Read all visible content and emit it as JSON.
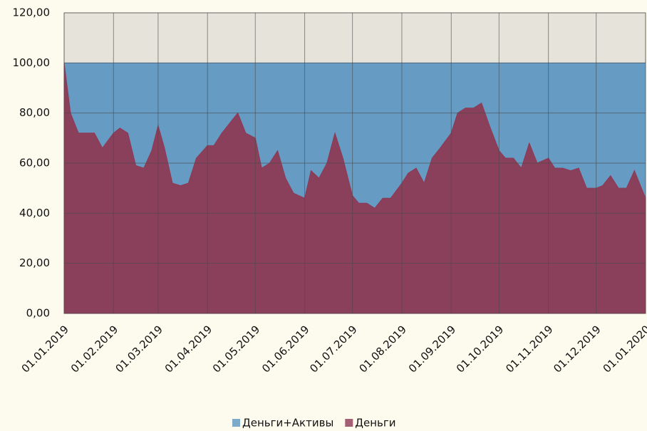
{
  "chart_data": {
    "type": "area",
    "x": [
      "01.01.2019",
      "05.01.2019",
      "10.01.2019",
      "20.01.2019",
      "25.01.2019",
      "01.02.2019",
      "05.02.2019",
      "10.02.2019",
      "15.02.2019",
      "20.02.2019",
      "25.02.2019",
      "01.03.2019",
      "05.03.2019",
      "10.03.2019",
      "15.03.2019",
      "20.03.2019",
      "25.03.2019",
      "01.04.2019",
      "05.04.2019",
      "10.04.2019",
      "15.04.2019",
      "20.04.2019",
      "25.04.2019",
      "01.05.2019",
      "05.05.2019",
      "10.05.2019",
      "15.05.2019",
      "20.05.2019",
      "25.05.2019",
      "01.06.2019",
      "05.06.2019",
      "10.06.2019",
      "15.06.2019",
      "20.06.2019",
      "25.06.2019",
      "01.07.2019",
      "05.07.2019",
      "10.07.2019",
      "15.07.2019",
      "20.07.2019",
      "25.07.2019",
      "01.08.2019",
      "05.08.2019",
      "10.08.2019",
      "15.08.2019",
      "20.08.2019",
      "25.08.2019",
      "01.09.2019",
      "05.09.2019",
      "10.09.2019",
      "15.09.2019",
      "20.09.2019",
      "25.09.2019",
      "01.10.2019",
      "05.10.2019",
      "10.10.2019",
      "15.10.2019",
      "20.10.2019",
      "25.10.2019",
      "01.11.2019",
      "05.11.2019",
      "10.11.2019",
      "15.11.2019",
      "20.11.2019",
      "25.11.2019",
      "01.12.2019",
      "05.12.2019",
      "10.12.2019",
      "15.12.2019",
      "20.12.2019",
      "25.12.2019",
      "01.01.2020"
    ],
    "series": [
      {
        "name": "Деньги+Активы",
        "color": "#5f97c2",
        "values": [
          100,
          100,
          100,
          100,
          100,
          100,
          100,
          100,
          100,
          100,
          100,
          100,
          100,
          100,
          100,
          100,
          100,
          100,
          100,
          100,
          100,
          100,
          100,
          100,
          100,
          100,
          100,
          100,
          100,
          100,
          100,
          100,
          100,
          100,
          100,
          100,
          100,
          100,
          100,
          100,
          100,
          100,
          100,
          100,
          100,
          100,
          100,
          100,
          100,
          100,
          100,
          100,
          100,
          100,
          100,
          100,
          100,
          100,
          100,
          100,
          100,
          100,
          100,
          100,
          100,
          100,
          100,
          100,
          100,
          100,
          100,
          100
        ]
      },
      {
        "name": "Деньги",
        "color": "#8c3a55",
        "values": [
          100,
          80,
          72,
          72,
          66,
          72,
          74,
          72,
          59,
          58,
          65,
          75,
          66,
          52,
          51,
          52,
          62,
          67,
          67,
          72,
          76,
          80,
          72,
          70,
          58,
          60,
          65,
          54,
          48,
          46,
          57,
          54,
          60,
          72,
          62,
          47,
          44,
          44,
          42,
          46,
          46,
          52,
          56,
          58,
          52,
          62,
          66,
          72,
          80,
          82,
          82,
          84,
          75,
          65,
          62,
          62,
          58,
          68,
          60,
          62,
          58,
          58,
          57,
          58,
          50,
          50,
          51,
          55,
          50,
          50,
          57,
          46
        ]
      }
    ],
    "xlim": [
      "01.01.2019",
      "01.01.2020"
    ],
    "xticks": [
      "01.01.2019",
      "01.02.2019",
      "01.03.2019",
      "01.04.2019",
      "01.05.2019",
      "01.06.2019",
      "01.07.2019",
      "01.08.2019",
      "01.09.2019",
      "01.10.2019",
      "01.11.2019",
      "01.12.2019",
      "01.01.2020"
    ],
    "ylim": [
      0,
      120
    ],
    "yticks": [
      {
        "value": 0,
        "label": "0,00"
      },
      {
        "value": 20,
        "label": "20,00"
      },
      {
        "value": 40,
        "label": "40,00"
      },
      {
        "value": 60,
        "label": "60,00"
      },
      {
        "value": 80,
        "label": "80,00"
      },
      {
        "value": 100,
        "label": "100,00"
      },
      {
        "value": 120,
        "label": "120,00"
      }
    ],
    "grid": true,
    "legend": "bottom"
  }
}
